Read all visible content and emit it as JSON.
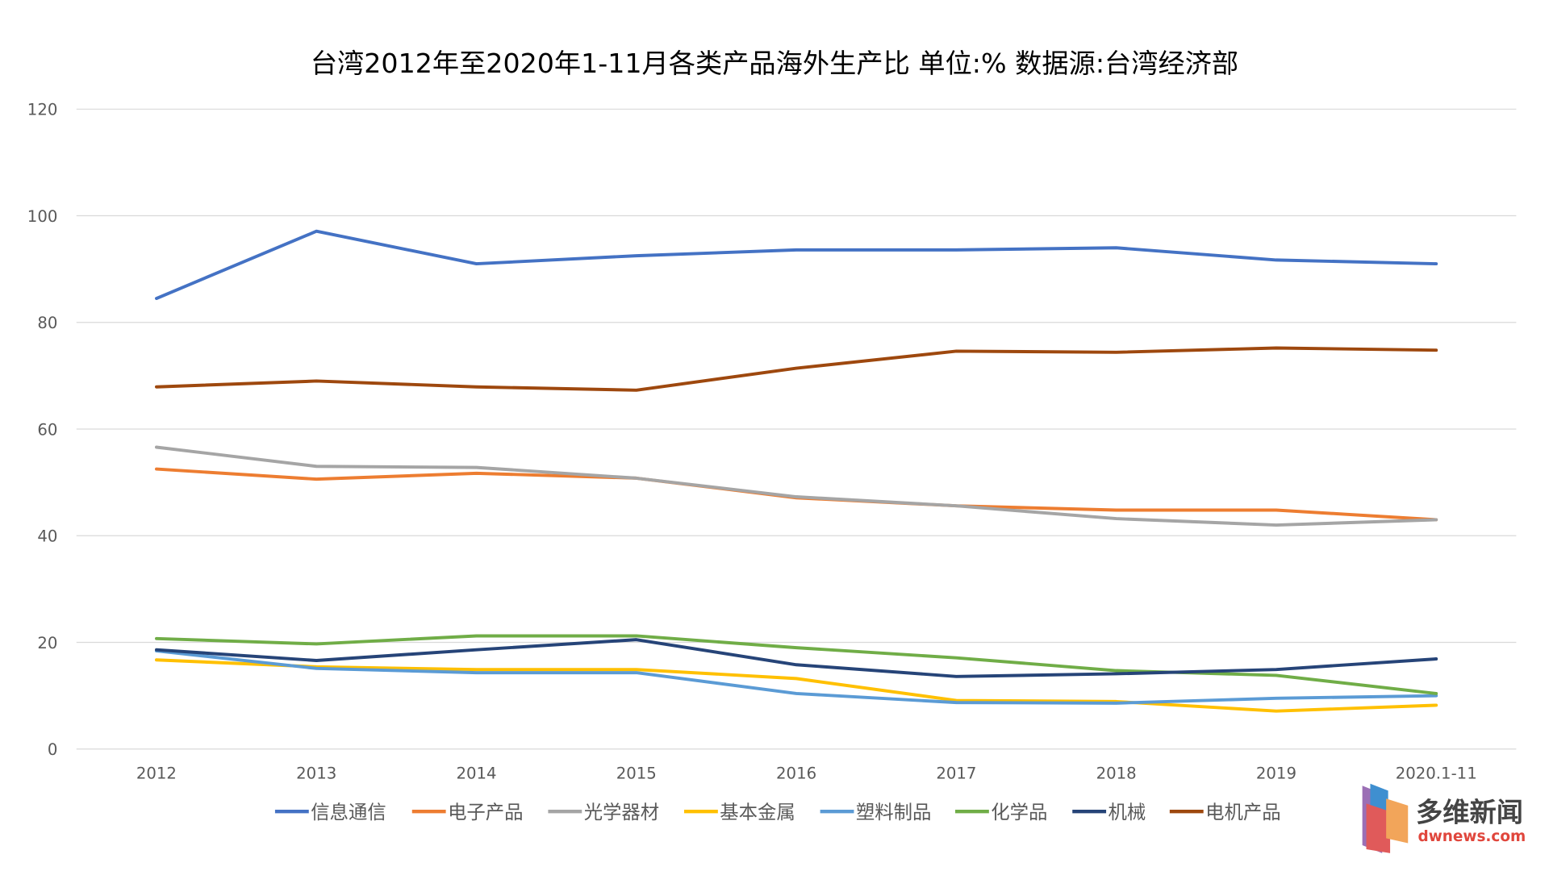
{
  "chart_data": {
    "type": "line",
    "title": "台湾2012年至2020年1-11月各类产品海外生产比 单位:% 数据源:台湾经济部",
    "xlabel": "",
    "ylabel": "",
    "categories": [
      "2012",
      "2013",
      "2014",
      "2015",
      "2016",
      "2017",
      "2018",
      "2019",
      "2020.1-11"
    ],
    "ylim": [
      0,
      120
    ],
    "yticks": [
      0,
      20,
      40,
      60,
      80,
      100,
      120
    ],
    "grid": true,
    "legend_position": "bottom",
    "series": [
      {
        "name": "信息通信",
        "color": "#4472C4",
        "values": [
          84.5,
          97.1,
          91.0,
          92.5,
          93.6,
          93.6,
          94.0,
          91.7,
          91.0
        ]
      },
      {
        "name": "电子产品",
        "color": "#ED7D31",
        "values": [
          52.5,
          50.6,
          51.7,
          50.8,
          47.1,
          45.6,
          44.8,
          44.8,
          43.0
        ]
      },
      {
        "name": "光学器材",
        "color": "#A5A5A5",
        "values": [
          56.6,
          53.0,
          52.8,
          50.8,
          47.3,
          45.6,
          43.2,
          42.0,
          43.0
        ]
      },
      {
        "name": "基本金属",
        "color": "#FFC000",
        "values": [
          16.7,
          15.4,
          14.9,
          14.9,
          13.2,
          9.1,
          8.9,
          7.1,
          8.2
        ]
      },
      {
        "name": "塑料制品",
        "color": "#5B9BD5",
        "values": [
          18.4,
          15.1,
          14.3,
          14.3,
          10.4,
          8.7,
          8.6,
          9.5,
          10.0
        ]
      },
      {
        "name": "化学品",
        "color": "#70AD47",
        "values": [
          20.7,
          19.7,
          21.2,
          21.2,
          19.0,
          17.1,
          14.7,
          13.8,
          10.4
        ]
      },
      {
        "name": "机械",
        "color": "#264478",
        "values": [
          18.6,
          16.6,
          18.6,
          20.5,
          15.8,
          13.6,
          14.1,
          14.9,
          16.9
        ]
      },
      {
        "name": "电机产品",
        "color": "#9E480E",
        "values": [
          67.9,
          69.0,
          67.9,
          67.3,
          71.4,
          74.6,
          74.4,
          75.2,
          74.8
        ]
      }
    ]
  },
  "logo": {
    "name": "多维新闻",
    "site": "dwnews.com"
  }
}
